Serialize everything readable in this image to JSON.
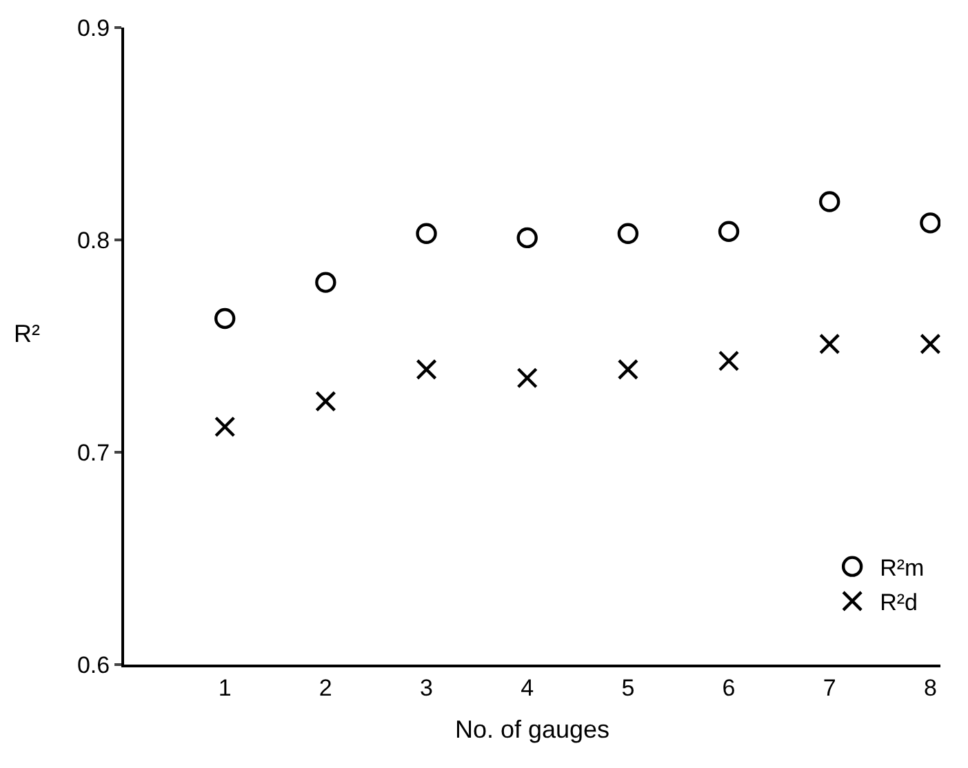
{
  "chart_data": {
    "type": "scatter",
    "xlabel": "No. of gauges",
    "ylabel": "R²",
    "x": [
      1,
      2,
      3,
      4,
      5,
      6,
      7,
      8
    ],
    "series": [
      {
        "name": "R²m",
        "color": "#000000",
        "marker": "circle",
        "values": [
          0.763,
          0.78,
          0.803,
          0.801,
          0.803,
          0.804,
          0.818,
          0.808
        ]
      },
      {
        "name": "R²d",
        "color": "#000000",
        "marker": "cross",
        "values": [
          0.712,
          0.724,
          0.739,
          0.735,
          0.739,
          0.743,
          0.751,
          0.751
        ]
      }
    ],
    "xlim": [
      0,
      8.1
    ],
    "xticks": [
      1,
      2,
      3,
      4,
      5,
      6,
      7,
      8
    ],
    "ylim": [
      0.6,
      0.9
    ],
    "yticks": [
      0.6,
      0.7,
      0.8,
      0.9
    ],
    "legend": "bottom right"
  }
}
